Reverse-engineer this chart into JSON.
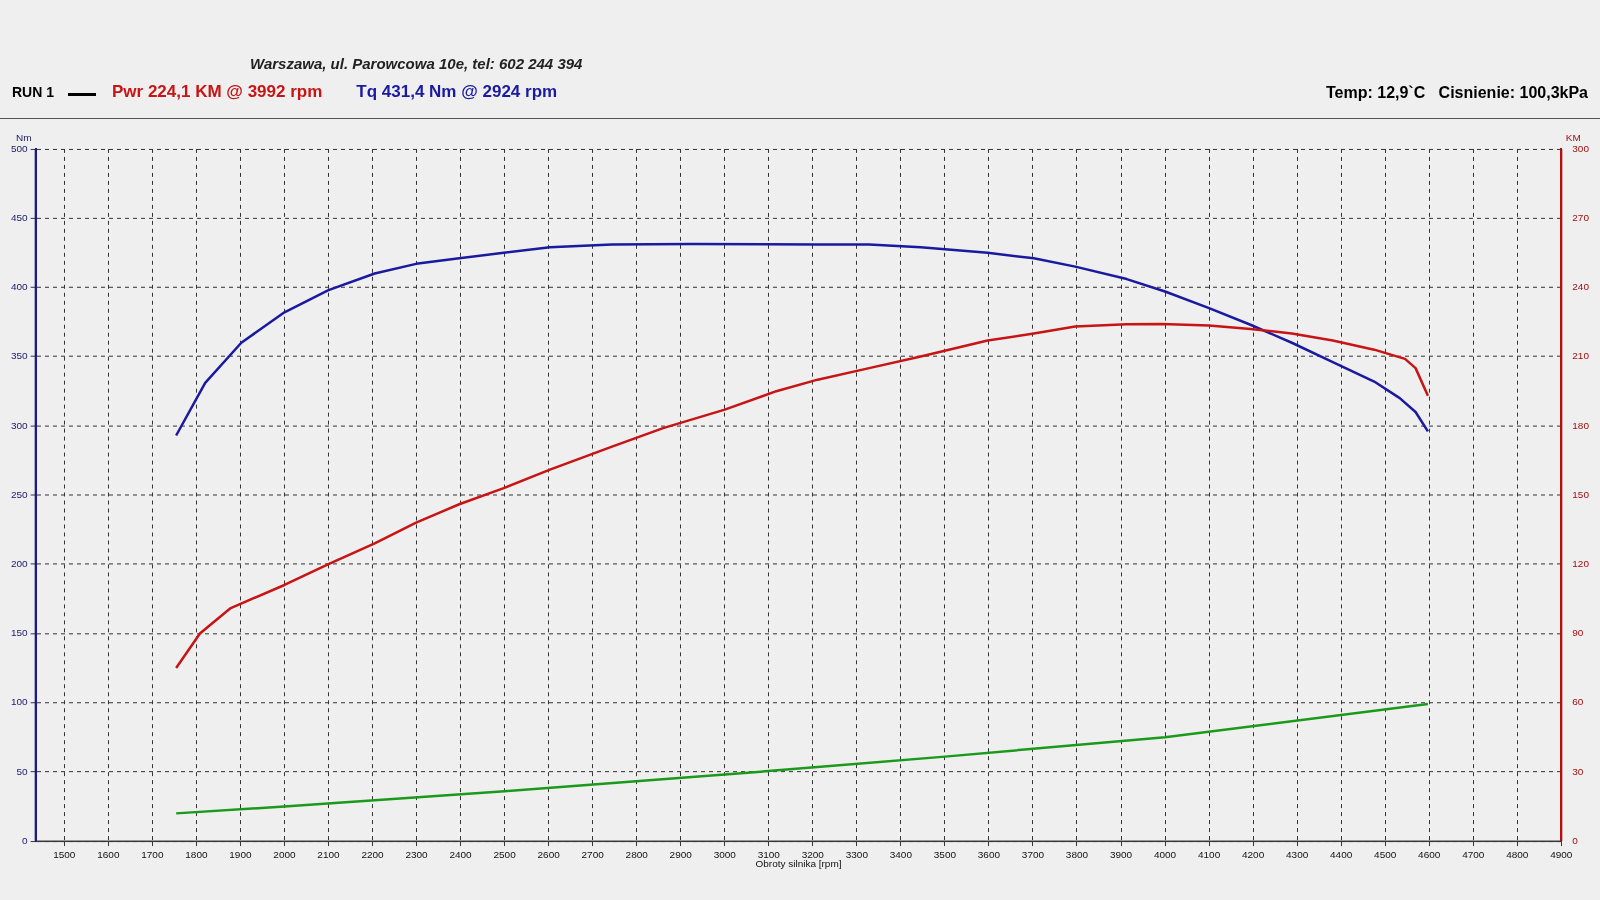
{
  "chart_data": {
    "type": "line",
    "annotations": [
      "Warszawa, ul. Parowcowa 10e, tel: 602 244 394",
      "RUN 1",
      "Temp: 12,9`C   Cisnienie: 100,3kPa"
    ],
    "xlabel": "Obroty silnika [rpm]",
    "ylabel": "Nm",
    "y2label": "KM",
    "xlim": [
      1435,
      4900
    ],
    "xticks": [
      1500,
      1600,
      1700,
      1800,
      1900,
      2000,
      2100,
      2200,
      2300,
      2400,
      2500,
      2600,
      2700,
      2800,
      2900,
      3000,
      3100,
      3200,
      3300,
      3400,
      3500,
      3600,
      3700,
      3800,
      3900,
      4000,
      4100,
      4200,
      4300,
      4400,
      4500,
      4600,
      4700,
      4800,
      4900
    ],
    "ylim": [
      0,
      500
    ],
    "yticks": [
      0,
      50,
      100,
      150,
      200,
      250,
      300,
      350,
      400,
      450,
      500
    ],
    "y2lim": [
      0,
      300
    ],
    "y2ticks": [
      0,
      30,
      60,
      90,
      120,
      150,
      180,
      210,
      240,
      270,
      300
    ],
    "grid": true,
    "legend": "top left",
    "marker": "none",
    "line_style": "solid",
    "series": [
      {
        "name": "Pwr  224,1 KM @ 3992 rpm",
        "color": "#c81414",
        "axis": "y2",
        "x": [
          1754,
          1808,
          1878,
          2000,
          2100,
          2205,
          2299,
          2397,
          2498,
          2603,
          2744,
          2860,
          3000,
          3117,
          3211,
          3328,
          3445,
          3597,
          3702,
          3796,
          3913,
          3992,
          4100,
          4194,
          4288,
          4381,
          4475,
          4545,
          4569,
          4597
        ],
        "values": [
          75,
          90,
          101,
          111,
          120,
          129,
          138,
          146,
          153,
          161,
          171,
          179,
          187,
          195,
          200,
          205,
          210,
          217,
          220,
          223,
          224,
          224.1,
          223.5,
          222,
          220,
          217,
          213,
          209,
          205,
          193
        ]
      },
      {
        "name": "Tq 431,4 Nm @ 2924 rpm",
        "color": "#1a1aa0",
        "x": [
          1754,
          1820,
          1902,
          2000,
          2100,
          2205,
          2299,
          2397,
          2498,
          2603,
          2744,
          2924,
          3211,
          3328,
          3445,
          3597,
          3702,
          3796,
          3913,
          4000,
          4100,
          4194,
          4288,
          4381,
          4475,
          4533,
          4569,
          4597
        ],
        "values": [
          293,
          331,
          360,
          382,
          398,
          410,
          417,
          421,
          425,
          429,
          431,
          431.4,
          431,
          431,
          429,
          425,
          421,
          415,
          406,
          397,
          385,
          373,
          360,
          346,
          332,
          320,
          310,
          296
        ]
      },
      {
        "color": "#1a9a1a",
        "x": [
          1754,
          2000,
          2500,
          3000,
          3500,
          4000,
          4597
        ],
        "values": [
          20,
          25,
          36,
          48,
          61,
          75,
          99
        ]
      }
    ]
  }
}
